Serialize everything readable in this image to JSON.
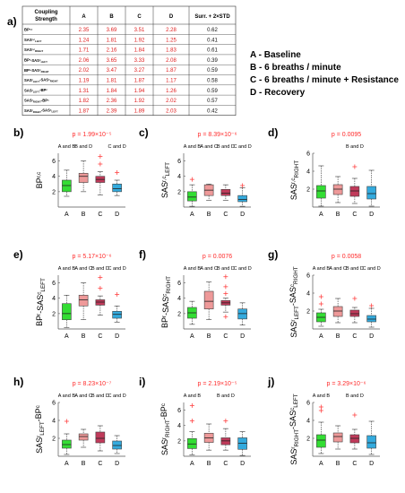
{
  "panel_a": {
    "label": "a)",
    "table": {
      "corner": [
        "Coupling",
        "Strength"
      ],
      "headers": [
        "A",
        "B",
        "C",
        "D",
        "Surr. + 2×STD"
      ],
      "rows": [
        {
          "label": "BP^{r,c}",
          "values": [
            "2.35",
            "3.69",
            "3.51",
            "2.28"
          ],
          "thr": "0.62"
        },
        {
          "label": "SAS^{r,c}_{LEFT}",
          "values": [
            "1.24",
            "1.81",
            "1.92",
            "1.25"
          ],
          "thr": "0.41"
        },
        {
          "label": "SAS^{r,c}_{RIGHT}",
          "values": [
            "1.71",
            "2.16",
            "1.84",
            "1.83"
          ],
          "thr": "0.61"
        },
        {
          "label": "BP^{r}-SAS^{c}_{LEFT}",
          "values": [
            "2.06",
            "3.65",
            "3.33",
            "2.08"
          ],
          "thr": "0.39"
        },
        {
          "label": "BP^{r}-SAS^{c}_{RIGHT}",
          "values": [
            "2.02",
            "3.47",
            "3.27",
            "1.87"
          ],
          "thr": "0.59"
        },
        {
          "label": "SAS^{r}_{LEFT}-SAS^{c}_{RIGHT}",
          "values": [
            "1.19",
            "1.81",
            "1.87",
            "1.17"
          ],
          "thr": "0.58"
        },
        {
          "label": "SAS^{r}_{LEFT}-BP^{c}",
          "values": [
            "1.31",
            "1.84",
            "1.94",
            "1.26"
          ],
          "thr": "0.59"
        },
        {
          "label": "SAS^{r}_{RIGHT}-BP^{c}",
          "values": [
            "1.82",
            "2.36",
            "1.92",
            "2.02"
          ],
          "thr": "0.57"
        },
        {
          "label": "SAS^{r}_{RIGHT}-SAS^{c}_{LEFT}",
          "values": [
            "1.87",
            "2.39",
            "1.89",
            "2.03"
          ],
          "thr": "0.42"
        }
      ]
    },
    "legend": [
      "A - Baseline",
      "B - 6 breaths / minute",
      "C - 6 breaths / minute + Resistance",
      "D - Recovery"
    ]
  },
  "colors": {
    "A": "#33dd33",
    "B": "#ee9999",
    "C": "#c03a5a",
    "D": "#33aadd",
    "outlier": "#ff4444",
    "pvalue": "#ff2a2a"
  },
  "chart_data": [
    {
      "type": "box",
      "panel": "b)",
      "pvalue": "p = 1.99×10⁻⁵",
      "ylabel": "BP^{r,c}",
      "ylim": [
        0,
        7
      ],
      "yticks": [
        2,
        4,
        6
      ],
      "categories": [
        "A",
        "B",
        "C",
        "D"
      ],
      "significance": [
        {
          "text": "A and B",
          "over": "A"
        },
        {
          "text": "B and D",
          "over": "B"
        },
        {
          "text": "C and D",
          "over": "D"
        }
      ],
      "boxes": [
        {
          "cat": "A",
          "min": 1.4,
          "q1": 2.0,
          "median": 2.8,
          "q3": 3.5,
          "max": 4.8,
          "outliers": []
        },
        {
          "cat": "B",
          "min": 2.0,
          "q1": 3.2,
          "median": 4.0,
          "q3": 4.4,
          "max": 6.0,
          "outliers": []
        },
        {
          "cat": "C",
          "min": 1.6,
          "q1": 3.2,
          "median": 3.6,
          "q3": 4.0,
          "max": 4.6,
          "outliers": [
            6.6,
            5.6
          ]
        },
        {
          "cat": "D",
          "min": 1.5,
          "q1": 2.0,
          "median": 2.4,
          "q3": 3.0,
          "max": 3.5,
          "outliers": [
            4.5
          ]
        }
      ]
    },
    {
      "type": "box",
      "panel": "c)",
      "pvalue": "p = 8.39×10⁻⁶",
      "ylabel": "SAS^{r,c}_{LEFT}",
      "ylim": [
        0,
        7
      ],
      "yticks": [
        2,
        4,
        6
      ],
      "categories": [
        "A",
        "B",
        "C",
        "D"
      ],
      "significance": [
        {
          "text": "A and B",
          "over": "A"
        },
        {
          "text": "A and C",
          "over": "B"
        },
        {
          "text": "B and D",
          "over": "C"
        },
        {
          "text": "C and D",
          "over": "D"
        }
      ],
      "boxes": [
        {
          "cat": "A",
          "min": 0.1,
          "q1": 0.8,
          "median": 1.3,
          "q3": 2.0,
          "max": 2.9,
          "outliers": [
            3.6
          ]
        },
        {
          "cat": "B",
          "min": 0.9,
          "q1": 1.5,
          "median": 2.2,
          "q3": 2.9,
          "max": 3.0,
          "outliers": []
        },
        {
          "cat": "C",
          "min": 0.9,
          "q1": 1.5,
          "median": 1.8,
          "q3": 2.3,
          "max": 2.9,
          "outliers": []
        },
        {
          "cat": "D",
          "min": 0.1,
          "q1": 0.7,
          "median": 1.0,
          "q3": 1.5,
          "max": 2.5,
          "outliers": [
            2.8
          ]
        }
      ]
    },
    {
      "type": "box",
      "panel": "d)",
      "pvalue": "p = 0.0095",
      "ylabel": "SAS^{r,c}_{RIGHT}",
      "ylim": [
        0,
        6
      ],
      "yticks": [
        2,
        4,
        6
      ],
      "categories": [
        "A",
        "B",
        "C",
        "D"
      ],
      "significance": [
        {
          "text": "B and D",
          "over": "C"
        }
      ],
      "boxes": [
        {
          "cat": "A",
          "min": 0.1,
          "q1": 1.0,
          "median": 1.8,
          "q3": 2.4,
          "max": 4.6,
          "outliers": []
        },
        {
          "cat": "B",
          "min": 0.5,
          "q1": 1.4,
          "median": 2.0,
          "q3": 2.5,
          "max": 3.4,
          "outliers": []
        },
        {
          "cat": "C",
          "min": 0.4,
          "q1": 1.2,
          "median": 1.8,
          "q3": 2.3,
          "max": 3.2,
          "outliers": [
            4.5
          ]
        },
        {
          "cat": "D",
          "min": 0.1,
          "q1": 0.9,
          "median": 1.5,
          "q3": 2.3,
          "max": 4.1,
          "outliers": []
        }
      ]
    },
    {
      "type": "box",
      "panel": "e)",
      "pvalue": "p = 5.17×10⁻⁶",
      "ylabel": "BP^{r}-SAS^{c}_{LEFT}",
      "ylim": [
        0,
        7
      ],
      "yticks": [
        2,
        4,
        6
      ],
      "categories": [
        "A",
        "B",
        "C",
        "D"
      ],
      "significance": [
        {
          "text": "A and B",
          "over": "A"
        },
        {
          "text": "A and C",
          "over": "B"
        },
        {
          "text": "B and D",
          "over": "C"
        },
        {
          "text": "C and D",
          "over": "D"
        }
      ],
      "boxes": [
        {
          "cat": "A",
          "min": 0.2,
          "q1": 1.2,
          "median": 2.0,
          "q3": 3.3,
          "max": 4.4,
          "outliers": []
        },
        {
          "cat": "B",
          "min": 1.2,
          "q1": 3.0,
          "median": 3.8,
          "q3": 4.4,
          "max": 6.0,
          "outliers": []
        },
        {
          "cat": "C",
          "min": 1.8,
          "q1": 3.1,
          "median": 3.5,
          "q3": 3.8,
          "max": 4.3,
          "outliers": [
            6.7,
            5.3
          ]
        },
        {
          "cat": "D",
          "min": 0.9,
          "q1": 1.4,
          "median": 1.9,
          "q3": 2.3,
          "max": 3.0,
          "outliers": [
            4.5
          ]
        }
      ]
    },
    {
      "type": "box",
      "panel": "f)",
      "pvalue": "p = 0.0076",
      "ylabel": "BP^{r}-SAS^{c}_{RIGHT}",
      "ylim": [
        0,
        7
      ],
      "yticks": [
        2,
        4,
        6
      ],
      "categories": [
        "A",
        "B",
        "C",
        "D"
      ],
      "significance": [
        {
          "text": "A and B",
          "over": "A"
        },
        {
          "text": "A and C",
          "over": "B"
        },
        {
          "text": "B and D",
          "over": "C"
        },
        {
          "text": "C and D",
          "over": "D"
        }
      ],
      "boxes": [
        {
          "cat": "A",
          "min": 0.6,
          "q1": 1.4,
          "median": 2.1,
          "q3": 2.8,
          "max": 3.6,
          "outliers": []
        },
        {
          "cat": "B",
          "min": 1.2,
          "q1": 2.6,
          "median": 3.6,
          "q3": 4.9,
          "max": 6.1,
          "outliers": []
        },
        {
          "cat": "C",
          "min": 2.2,
          "q1": 3.1,
          "median": 3.4,
          "q3": 3.7,
          "max": 4.0,
          "outliers": [
            6.8,
            5.5,
            4.6,
            1.6
          ]
        },
        {
          "cat": "D",
          "min": 0.5,
          "q1": 1.3,
          "median": 2.0,
          "q3": 2.6,
          "max": 3.4,
          "outliers": []
        }
      ]
    },
    {
      "type": "box",
      "panel": "g)",
      "pvalue": "p = 0.0058",
      "ylabel": "SAS^{r}_{LEFT}-SAS^{c}_{RIGHT}",
      "ylim": [
        0,
        6
      ],
      "yticks": [
        2,
        4,
        6
      ],
      "categories": [
        "A",
        "B",
        "C",
        "D"
      ],
      "significance": [
        {
          "text": "A and B",
          "over": "A"
        },
        {
          "text": "A and C",
          "over": "B"
        },
        {
          "text": "B and D",
          "over": "C"
        },
        {
          "text": "C and D",
          "over": "D"
        }
      ],
      "boxes": [
        {
          "cat": "A",
          "min": 0.3,
          "q1": 0.8,
          "median": 1.3,
          "q3": 1.8,
          "max": 2.2,
          "outliers": [
            3.6,
            2.8
          ]
        },
        {
          "cat": "B",
          "min": 0.7,
          "q1": 1.4,
          "median": 2.0,
          "q3": 2.5,
          "max": 3.4,
          "outliers": []
        },
        {
          "cat": "C",
          "min": 0.7,
          "q1": 1.4,
          "median": 1.7,
          "q3": 2.1,
          "max": 2.4,
          "outliers": [
            3.4
          ]
        },
        {
          "cat": "D",
          "min": 0.2,
          "q1": 0.8,
          "median": 1.1,
          "q3": 1.5,
          "max": 2.3,
          "outliers": [
            2.6
          ]
        }
      ]
    },
    {
      "type": "box",
      "panel": "h)",
      "pvalue": "p = 8.23×10⁻⁷",
      "ylabel": "SAS^{r}_{LEFT}-BP^{c}",
      "ylim": [
        0,
        6
      ],
      "yticks": [
        2,
        4,
        6
      ],
      "categories": [
        "A",
        "B",
        "C",
        "D"
      ],
      "significance": [
        {
          "text": "A and B",
          "over": "A"
        },
        {
          "text": "A and C",
          "over": "B"
        },
        {
          "text": "B and D",
          "over": "C"
        },
        {
          "text": "C and D",
          "over": "D"
        }
      ],
      "boxes": [
        {
          "cat": "A",
          "min": 0.2,
          "q1": 0.9,
          "median": 1.3,
          "q3": 1.8,
          "max": 2.5,
          "outliers": [
            3.9
          ]
        },
        {
          "cat": "B",
          "min": 1.0,
          "q1": 1.8,
          "median": 2.2,
          "q3": 2.5,
          "max": 3.0,
          "outliers": []
        },
        {
          "cat": "C",
          "min": 0.6,
          "q1": 1.5,
          "median": 2.0,
          "q3": 2.7,
          "max": 3.4,
          "outliers": []
        },
        {
          "cat": "D",
          "min": 0.3,
          "q1": 0.8,
          "median": 1.2,
          "q3": 1.7,
          "max": 2.3,
          "outliers": []
        }
      ]
    },
    {
      "type": "box",
      "panel": "i)",
      "pvalue": "p = 2.19×10⁻⁵",
      "ylabel": "SAS^{r}_{RIGHT}-BP^{c}",
      "ylim": [
        0,
        7
      ],
      "yticks": [
        2,
        4,
        6
      ],
      "categories": [
        "A",
        "B",
        "C",
        "D"
      ],
      "significance": [
        {
          "text": "A and B",
          "over": "A"
        },
        {
          "text": "B and D",
          "over": "C"
        }
      ],
      "boxes": [
        {
          "cat": "A",
          "min": 0.2,
          "q1": 1.0,
          "median": 1.6,
          "q3": 2.3,
          "max": 3.2,
          "outliers": [
            6.6,
            4.6
          ]
        },
        {
          "cat": "B",
          "min": 0.8,
          "q1": 1.8,
          "median": 2.4,
          "q3": 3.0,
          "max": 4.2,
          "outliers": []
        },
        {
          "cat": "C",
          "min": 0.8,
          "q1": 1.5,
          "median": 2.0,
          "q3": 2.4,
          "max": 3.6,
          "outliers": [
            4.6
          ]
        },
        {
          "cat": "D",
          "min": 0.1,
          "q1": 0.9,
          "median": 1.7,
          "q3": 2.4,
          "max": 3.2,
          "outliers": []
        }
      ]
    },
    {
      "type": "box",
      "panel": "j)",
      "pvalue": "p = 3.29×10⁻⁶",
      "ylabel": "SAS^{r}_{RIGHT}-SAS^{c}_{LEFT}",
      "ylim": [
        0,
        6
      ],
      "yticks": [
        2,
        4,
        6
      ],
      "categories": [
        "A",
        "B",
        "C",
        "D"
      ],
      "significance": [
        {
          "text": "A and B",
          "over": "A"
        },
        {
          "text": "B and D",
          "over": "C"
        }
      ],
      "boxes": [
        {
          "cat": "A",
          "min": 0.3,
          "q1": 1.0,
          "median": 1.8,
          "q3": 2.4,
          "max": 3.8,
          "outliers": [
            5.5,
            5.1
          ]
        },
        {
          "cat": "B",
          "min": 0.8,
          "q1": 1.6,
          "median": 2.2,
          "q3": 2.6,
          "max": 3.4,
          "outliers": []
        },
        {
          "cat": "C",
          "min": 0.8,
          "q1": 1.5,
          "median": 2.0,
          "q3": 2.4,
          "max": 3.0,
          "outliers": [
            4.6
          ]
        },
        {
          "cat": "D",
          "min": 0.2,
          "q1": 0.9,
          "median": 1.5,
          "q3": 2.3,
          "max": 3.9,
          "outliers": []
        }
      ]
    }
  ]
}
